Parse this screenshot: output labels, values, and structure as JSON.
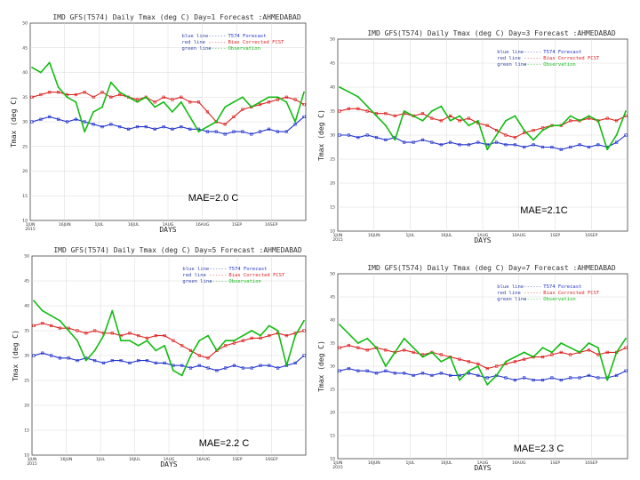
{
  "chart_data": [
    {
      "type": "line",
      "title": "IMD GFS(T574) Daily Tmax (deg C) Day=1 Forecast :AHMEDABAD",
      "xlabel": "DAYS",
      "ylabel": "Tmax (deg C)",
      "ylim": [
        10,
        50
      ],
      "yticks": [
        "10",
        "15",
        "20",
        "25",
        "30",
        "35",
        "40",
        "45",
        "50"
      ],
      "xtick_labels": [
        "1JUN 2015",
        "16JUN",
        "1JUL",
        "16JUL",
        "1AUG",
        "16AUG",
        "1SEP",
        "16SEP"
      ],
      "mae_label": "MAE=2.0 C",
      "legend": [
        {
          "key": "blue line",
          "dash": "------",
          "label": "T574 Forecast",
          "color": "#2233cc"
        },
        {
          "key": "red line",
          "dash": "------",
          "label": "Bias Corrected FCST",
          "color": "#dd2222"
        },
        {
          "key": "green line",
          "dash": "------",
          "label": "Observation",
          "color": "#11bb11"
        }
      ],
      "series": [
        {
          "name": "T574 Forecast",
          "color": "#2233cc",
          "values": [
            30,
            30.5,
            31,
            30.5,
            30,
            30.5,
            30,
            29.5,
            29,
            29.5,
            29,
            28.5,
            29,
            29,
            28.5,
            29,
            28.5,
            29,
            28.5,
            28.5,
            28,
            28,
            27.5,
            28,
            28,
            27.5,
            28,
            28.5,
            28,
            28,
            29.5,
            31
          ]
        },
        {
          "name": "Bias Corrected FCST",
          "color": "#dd2222",
          "values": [
            35,
            35.5,
            36,
            36,
            35.5,
            35.5,
            36,
            35,
            36,
            35,
            35.5,
            35,
            34.5,
            35,
            34,
            35,
            34.5,
            35,
            34,
            34,
            32,
            30,
            29.5,
            31,
            32.5,
            33,
            33.5,
            34,
            34.5,
            35,
            34.5,
            33.5
          ]
        },
        {
          "name": "Observation",
          "color": "#11bb11",
          "values": [
            41,
            40,
            42,
            37,
            35,
            34,
            28,
            32,
            33,
            38,
            36,
            35,
            34,
            35,
            33,
            34,
            32,
            34,
            31,
            28,
            29,
            30,
            33,
            34,
            35,
            33,
            34,
            35,
            35,
            34,
            30,
            36
          ]
        }
      ]
    },
    {
      "type": "line",
      "title": "IMD GFS(T574) Daily Tmax (deg C) Day=3 Forecast :AHMEDABAD",
      "xlabel": "DAYS",
      "ylabel": "Tmax (deg C)",
      "ylim": [
        10,
        50
      ],
      "yticks": [
        "10",
        "15",
        "20",
        "25",
        "30",
        "35",
        "40",
        "45",
        "50"
      ],
      "xtick_labels": [
        "1JUN 2015",
        "16JUN",
        "1JUL",
        "16JUL",
        "1AUG",
        "16AUG",
        "1SEP",
        "16SEP"
      ],
      "mae_label": "MAE=2.1C",
      "legend": [
        {
          "key": "blue line",
          "dash": "------",
          "label": "T574 Forecast",
          "color": "#2233cc"
        },
        {
          "key": "red line",
          "dash": "------",
          "label": "Bias Corrected FCST",
          "color": "#dd2222"
        },
        {
          "key": "green line",
          "dash": "------",
          "label": "Observation",
          "color": "#11bb11"
        }
      ],
      "series": [
        {
          "name": "T574 Forecast",
          "color": "#2233cc",
          "values": [
            30,
            30,
            29.5,
            30,
            29.5,
            29,
            29.5,
            28.5,
            28.5,
            29,
            28.5,
            28,
            28.5,
            28,
            28,
            28.5,
            28,
            28.5,
            28,
            28,
            27.5,
            28,
            27.5,
            27.5,
            27,
            27.5,
            28,
            27.5,
            28,
            27.5,
            28.5,
            30
          ]
        },
        {
          "name": "Bias Corrected FCST",
          "color": "#dd2222",
          "values": [
            35,
            35.5,
            35.5,
            35,
            34.5,
            34.5,
            34,
            34.5,
            34,
            34.5,
            33.5,
            33,
            34,
            33,
            33.5,
            32.5,
            32,
            31,
            30,
            29.5,
            30.5,
            31,
            31.5,
            32,
            32,
            33,
            33,
            33.5,
            33,
            33.5,
            33,
            34
          ]
        },
        {
          "name": "Observation",
          "color": "#11bb11",
          "values": [
            40,
            39,
            38,
            36,
            34,
            32,
            29,
            35,
            34,
            33,
            35,
            36,
            33,
            34,
            32,
            33,
            27,
            30,
            33,
            34,
            31,
            29,
            31,
            32,
            32,
            34,
            33,
            34,
            33,
            27,
            30,
            35
          ]
        }
      ]
    },
    {
      "type": "line",
      "title": "IMD GFS(T574) Daily Tmax (deg C) Day=5 Forecast :AHMEDABAD",
      "xlabel": "DAYS",
      "ylabel": "Tmax (deg C)",
      "ylim": [
        10,
        50
      ],
      "yticks": [
        "10",
        "15",
        "20",
        "25",
        "30",
        "35",
        "40",
        "45",
        "50"
      ],
      "xtick_labels": [
        "1JUN 2015",
        "16JUN",
        "1JUL",
        "16JUL",
        "1AUG",
        "16AUG",
        "1SEP",
        "16SEP"
      ],
      "mae_label": "MAE=2.2 C",
      "legend": [
        {
          "key": "blue line",
          "dash": "------",
          "label": "T574 Forecast",
          "color": "#2233cc"
        },
        {
          "key": "red line",
          "dash": "------",
          "label": "Bias Corrected FCST",
          "color": "#dd2222"
        },
        {
          "key": "green line",
          "dash": "------",
          "label": "Observation",
          "color": "#11bb11"
        }
      ],
      "series": [
        {
          "name": "T574 Forecast",
          "color": "#2233cc",
          "values": [
            30,
            30.5,
            30,
            29.5,
            29.5,
            29,
            29.5,
            29,
            28.5,
            29,
            29,
            28.5,
            29,
            29,
            28.5,
            28.5,
            28,
            28,
            27.5,
            28,
            27.5,
            27,
            27.5,
            28,
            27.5,
            27.5,
            28,
            28,
            27.5,
            28,
            28.5,
            30
          ]
        },
        {
          "name": "Bias Corrected FCST",
          "color": "#dd2222",
          "values": [
            36,
            36.5,
            36,
            35.5,
            35.5,
            35,
            34.5,
            35,
            34.5,
            34.5,
            34,
            34.5,
            34,
            33.5,
            34,
            34,
            33,
            32,
            31,
            30,
            29.5,
            31,
            32,
            32.5,
            33,
            33.5,
            33.5,
            34,
            34.5,
            34,
            34.5,
            35
          ]
        },
        {
          "name": "Observation",
          "color": "#11bb11",
          "values": [
            41,
            39,
            38,
            37,
            35,
            33,
            29,
            31,
            34,
            39,
            33,
            33,
            32,
            33,
            31,
            32,
            27,
            26,
            30,
            33,
            34,
            31,
            33,
            33,
            34,
            35,
            34,
            36,
            35,
            28,
            34,
            37
          ]
        }
      ]
    },
    {
      "type": "line",
      "title": "IMD GFS(T574) Daily Tmax (deg C) Day=7 Forecast :AHMEDABAD",
      "xlabel": "DAYS",
      "ylabel": "Tmax (deg C)",
      "ylim": [
        10,
        50
      ],
      "yticks": [
        "10",
        "15",
        "20",
        "25",
        "30",
        "35",
        "40",
        "45",
        "50"
      ],
      "xtick_labels": [
        "1JUN 2015",
        "16JUN",
        "1JUL",
        "16JUL",
        "1AUG",
        "16AUG",
        "1SEP",
        "16SEP"
      ],
      "mae_label": "MAE=2.3 C",
      "legend": [
        {
          "key": "blue line",
          "dash": "------",
          "label": "T574 Forecast",
          "color": "#2233cc"
        },
        {
          "key": "red line",
          "dash": "------",
          "label": "Bias Corrected FCST",
          "color": "#dd2222"
        },
        {
          "key": "green line",
          "dash": "------",
          "label": "Observation",
          "color": "#11bb11"
        }
      ],
      "series": [
        {
          "name": "T574 Forecast",
          "color": "#2233cc",
          "values": [
            29,
            29.5,
            29,
            29,
            28.5,
            29,
            28.5,
            28.5,
            28,
            28.5,
            28,
            28.5,
            28,
            28,
            28.5,
            28,
            27.5,
            28,
            27.5,
            27,
            27.5,
            27,
            27,
            27.5,
            27,
            27.5,
            27.5,
            28,
            27.5,
            27.5,
            28,
            29
          ]
        },
        {
          "name": "Bias Corrected FCST",
          "color": "#dd2222",
          "values": [
            34,
            34.5,
            34,
            33.5,
            34,
            33.5,
            33,
            33.5,
            33,
            32.5,
            33,
            32.5,
            32,
            31.5,
            31,
            30.5,
            29.5,
            30,
            30.5,
            31,
            31.5,
            32,
            32,
            32.5,
            33,
            32.5,
            33,
            33.5,
            32.5,
            33,
            33,
            34
          ]
        },
        {
          "name": "Observation",
          "color": "#11bb11",
          "values": [
            39,
            37,
            35,
            36,
            34,
            30,
            33,
            36,
            34,
            32,
            33,
            31,
            32,
            27,
            29,
            30,
            26,
            28,
            31,
            32,
            33,
            32,
            34,
            33,
            35,
            34,
            33,
            35,
            34,
            27,
            33,
            36
          ]
        }
      ]
    }
  ]
}
